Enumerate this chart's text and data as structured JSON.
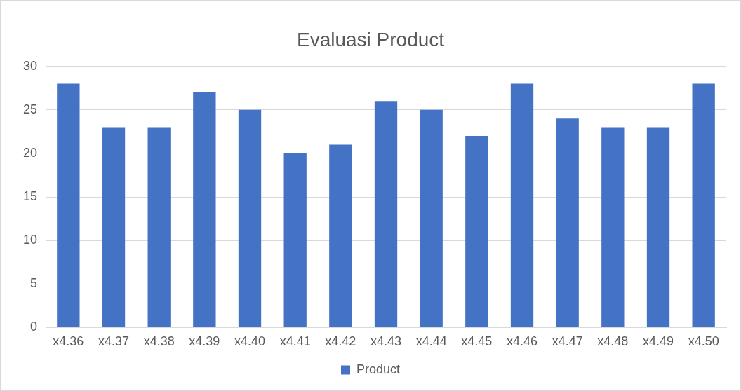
{
  "chart_data": {
    "type": "bar",
    "title": "Evaluasi Product",
    "categories": [
      "x4.36",
      "x4.37",
      "x4.38",
      "x4.39",
      "x4.40",
      "x4.41",
      "x4.42",
      "x4.43",
      "x4.44",
      "x4.45",
      "x4.46",
      "x4.47",
      "x4.48",
      "x4.49",
      "x4.50"
    ],
    "series": [
      {
        "name": "Product",
        "color": "#4472c4",
        "values": [
          28,
          23,
          23,
          27,
          25,
          20,
          21,
          26,
          25,
          22,
          28,
          24,
          23,
          23,
          28
        ]
      }
    ],
    "ylim": [
      0,
      30
    ],
    "yticks": [
      0,
      5,
      10,
      15,
      20,
      25,
      30
    ],
    "grid": "y",
    "legend": "bottom"
  }
}
